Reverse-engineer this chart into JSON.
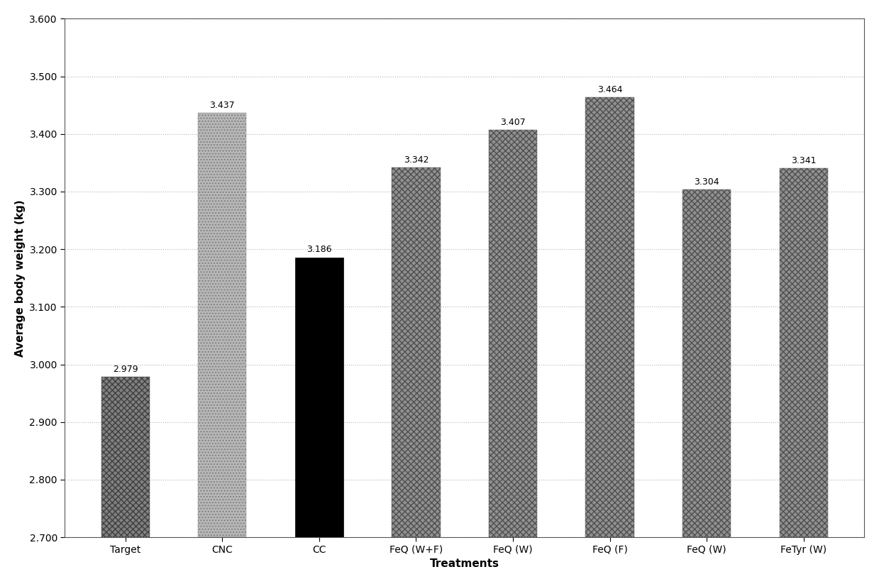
{
  "categories": [
    "Target",
    "CNC",
    "CC",
    "FeQ (W+F)",
    "FeQ (W)",
    "FeQ (F)",
    "FeQ (W)",
    "FeTyr (W)"
  ],
  "values": [
    2.979,
    3.437,
    3.186,
    3.342,
    3.407,
    3.464,
    3.304,
    3.341
  ],
  "title": "",
  "xlabel": "Treatments",
  "ylabel": "Average body weight (kg)",
  "ylim_min": 2.7,
  "ylim_max": 3.6,
  "yticks": [
    2.7,
    2.8,
    2.9,
    3.0,
    3.1,
    3.2,
    3.3,
    3.4,
    3.5,
    3.6
  ],
  "label_fontsize": 11,
  "tick_fontsize": 10,
  "background_color": "#ffffff",
  "value_label_fontsize": 9,
  "bar_width": 0.5
}
